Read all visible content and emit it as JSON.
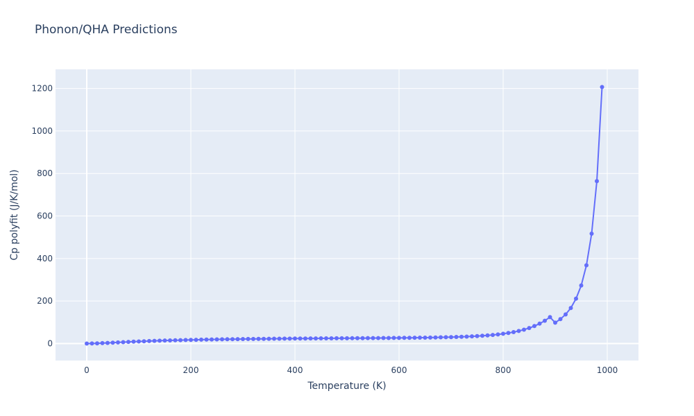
{
  "chart_data": {
    "type": "line",
    "title": "Phonon/QHA Predictions",
    "xlabel": "Temperature (K)",
    "ylabel": "Cp polyfit (J/K/mol)",
    "xlim": [
      -60,
      1060
    ],
    "ylim": [
      -80,
      1290
    ],
    "xticks": [
      0,
      200,
      400,
      600,
      800,
      1000
    ],
    "yticks": [
      0,
      200,
      400,
      600,
      800,
      1000,
      1200
    ],
    "grid": true,
    "series": [
      {
        "color": "#636efa",
        "x": [
          0,
          10,
          20,
          30,
          40,
          50,
          60,
          70,
          80,
          90,
          100,
          110,
          120,
          130,
          140,
          150,
          160,
          170,
          180,
          190,
          200,
          210,
          220,
          230,
          240,
          250,
          260,
          270,
          280,
          290,
          300,
          310,
          320,
          330,
          340,
          350,
          360,
          370,
          380,
          390,
          400,
          410,
          420,
          430,
          440,
          450,
          460,
          470,
          480,
          490,
          500,
          510,
          520,
          530,
          540,
          550,
          560,
          570,
          580,
          590,
          600,
          610,
          620,
          630,
          640,
          650,
          660,
          670,
          680,
          690,
          700,
          710,
          720,
          730,
          740,
          750,
          760,
          770,
          780,
          790,
          800,
          810,
          820,
          830,
          840,
          850,
          860,
          870,
          880,
          890,
          900,
          910,
          920,
          930,
          940,
          950,
          960,
          970,
          980,
          990
        ],
        "y": [
          0.0,
          0.3,
          0.9,
          1.8,
          2.9,
          4.1,
          5.3,
          6.5,
          7.6,
          8.7,
          9.7,
          10.7,
          11.6,
          12.5,
          13.3,
          14.0,
          14.7,
          15.4,
          16.0,
          16.6,
          17.1,
          17.6,
          18.1,
          18.6,
          19.0,
          19.4,
          19.8,
          20.1,
          20.5,
          20.8,
          21.1,
          21.4,
          21.6,
          21.9,
          22.1,
          22.4,
          22.6,
          22.8,
          23.0,
          23.2,
          23.4,
          23.5,
          23.7,
          23.9,
          24.0,
          24.2,
          24.3,
          24.5,
          24.6,
          24.8,
          24.9,
          25.0,
          25.2,
          25.3,
          25.5,
          25.6,
          25.8,
          25.9,
          26.1,
          26.3,
          26.5,
          26.7,
          27.0,
          27.2,
          27.5,
          27.8,
          28.2,
          28.6,
          29.1,
          29.6,
          30.2,
          30.9,
          31.7,
          32.6,
          33.7,
          35.0,
          36.5,
          38.3,
          40.4,
          42.9,
          45.9,
          49.5,
          53.8,
          59.0,
          65.3,
          72.9,
          82.2,
          93.5,
          107.3,
          124.2,
          98.0,
          115.0,
          137.0,
          167.0,
          211.0,
          273.0,
          368.0,
          517.0,
          764.0,
          1207.0
        ]
      }
    ]
  }
}
